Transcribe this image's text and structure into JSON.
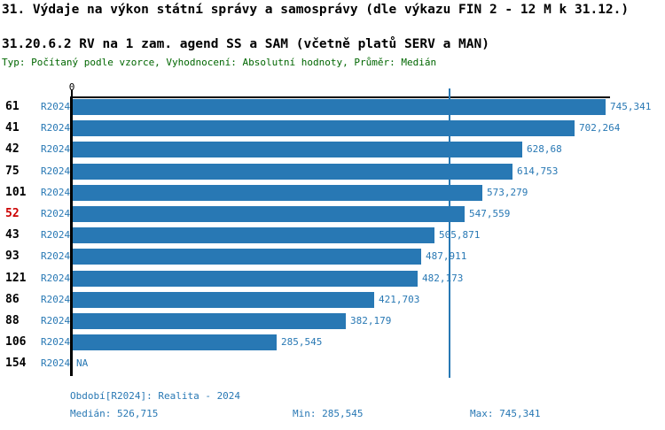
{
  "header": {
    "title": "31. Výdaje na výkon státní správy a samosprávy (dle výkazu FIN 2 - 12 M k 31.12.)",
    "subtitle": "31.20.6.2 RV na 1 zam. agend SS a SAM (včetně platů SERV a MAN)",
    "meta": "Typ: Počítaný podle vzorce, Vyhodnocení: Absolutní hodnoty, Průměr: Medián"
  },
  "chart_data": {
    "type": "bar",
    "orientation": "horizontal",
    "axis_origin_label": "0",
    "xlim": [
      0,
      745341
    ],
    "median_value": 526715,
    "max_value": 745341,
    "legend": "none",
    "rows": [
      {
        "id": "61",
        "period": "R2024",
        "value": 745341,
        "label": "745,341",
        "highlight": false
      },
      {
        "id": "41",
        "period": "R2024",
        "value": 702264,
        "label": "702,264",
        "highlight": false
      },
      {
        "id": "42",
        "period": "R2024",
        "value": 628680,
        "label": "628,68",
        "highlight": false
      },
      {
        "id": "75",
        "period": "R2024",
        "value": 614753,
        "label": "614,753",
        "highlight": false
      },
      {
        "id": "101",
        "period": "R2024",
        "value": 573279,
        "label": "573,279",
        "highlight": false
      },
      {
        "id": "52",
        "period": "R2024",
        "value": 547559,
        "label": "547,559",
        "highlight": true
      },
      {
        "id": "43",
        "period": "R2024",
        "value": 505871,
        "label": "505,871",
        "highlight": false
      },
      {
        "id": "93",
        "period": "R2024",
        "value": 487911,
        "label": "487,911",
        "highlight": false
      },
      {
        "id": "121",
        "period": "R2024",
        "value": 482173,
        "label": "482,173",
        "highlight": false
      },
      {
        "id": "86",
        "period": "R2024",
        "value": 421703,
        "label": "421,703",
        "highlight": false
      },
      {
        "id": "88",
        "period": "R2024",
        "value": 382179,
        "label": "382,179",
        "highlight": false
      },
      {
        "id": "106",
        "period": "R2024",
        "value": 285545,
        "label": "285,545",
        "highlight": false
      },
      {
        "id": "154",
        "period": "R2024",
        "value": null,
        "label": "NA",
        "highlight": false
      }
    ],
    "colors": {
      "bar": "#2878b4",
      "value_text": "#2878b4",
      "period_text": "#2878b4",
      "highlight_row_text": "#cc0000",
      "median_line": "#2878b4",
      "meta_text": "#006600"
    }
  },
  "footer": {
    "period_info": "Období[R2024]: Realita - 2024",
    "median": "Medián: 526,715",
    "min": "Min: 285,545",
    "max": "Max: 745,341"
  }
}
